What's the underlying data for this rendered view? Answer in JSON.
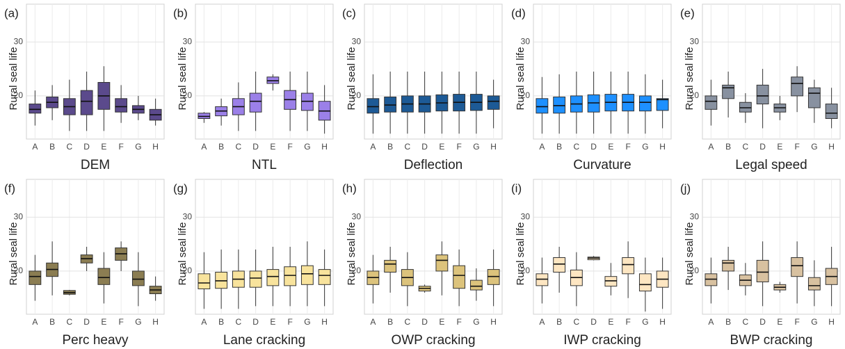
{
  "chart_data": [
    {
      "type": "box",
      "panel": "(a)",
      "title": "DEM",
      "y_label": "Rural seal life",
      "color": "#5b4a8c",
      "categories": [
        "A",
        "B",
        "C",
        "D",
        "E",
        "F",
        "G",
        "H"
      ],
      "whisker_low": [
        14.5,
        15.5,
        13.5,
        13.5,
        13.5,
        15,
        15.5,
        14.5
      ],
      "q1": [
        16.8,
        17.8,
        16.5,
        16.5,
        17.5,
        17,
        16.8,
        15.5
      ],
      "median": [
        17.5,
        18.8,
        18,
        19,
        20,
        18,
        17.5,
        16.5
      ],
      "q3": [
        18.5,
        19.8,
        19.5,
        21,
        22.5,
        19.5,
        18.2,
        17.5
      ],
      "whisker_high": [
        21,
        22,
        23,
        24.5,
        25.5,
        22,
        20,
        19.5
      ],
      "ylim": [
        12,
        37
      ],
      "yticks": [
        20,
        30
      ],
      "grid": true
    },
    {
      "type": "box",
      "panel": "(b)",
      "title": "NTL",
      "y_label": "Rural seal life",
      "color": "#9b80e8",
      "categories": [
        "A",
        "B",
        "C",
        "D",
        "E",
        "F",
        "G",
        "H"
      ],
      "whisker_low": [
        15,
        14.5,
        13.5,
        13.5,
        21,
        13.5,
        13.5,
        13
      ],
      "q1": [
        15.8,
        16.3,
        16.5,
        17,
        22.3,
        17.5,
        17.3,
        15.5
      ],
      "median": [
        16.2,
        17.2,
        18,
        19,
        22.8,
        19.3,
        19,
        17.2
      ],
      "q3": [
        16.8,
        18,
        19.5,
        20.5,
        23.5,
        21,
        20.5,
        19
      ],
      "whisker_high": [
        17,
        19.5,
        22.5,
        24.5,
        24,
        24.5,
        24.5,
        22
      ],
      "ylim": [
        12,
        37
      ],
      "yticks": [
        20,
        30
      ],
      "grid": true
    },
    {
      "type": "box",
      "panel": "(c)",
      "title": "Deflection",
      "y_label": "Rural seal life",
      "color": "#1d5a96",
      "categories": [
        "A",
        "B",
        "C",
        "D",
        "E",
        "F",
        "G",
        "H"
      ],
      "whisker_low": [
        13,
        13,
        13,
        13,
        13,
        13,
        13,
        14
      ],
      "q1": [
        16.8,
        17,
        17,
        17,
        17.2,
        17.2,
        17.3,
        17.5
      ],
      "median": [
        18,
        18.3,
        18.5,
        18.5,
        18.7,
        18.8,
        18.8,
        19
      ],
      "q3": [
        19.5,
        19.8,
        20,
        20,
        20.2,
        20.3,
        20.3,
        20
      ],
      "whisker_high": [
        24,
        24.5,
        24.5,
        24.5,
        24.5,
        24.5,
        24.5,
        23
      ],
      "ylim": [
        12,
        37
      ],
      "yticks": [
        20,
        30
      ],
      "grid": true
    },
    {
      "type": "box",
      "panel": "(d)",
      "title": "Curvature",
      "y_label": "Rural seal life",
      "color": "#1e90ff",
      "categories": [
        "A",
        "B",
        "C",
        "D",
        "E",
        "F",
        "G",
        "H"
      ],
      "whisker_low": [
        13,
        13,
        13,
        13,
        13,
        13,
        13,
        14
      ],
      "q1": [
        16.8,
        16.8,
        17,
        17,
        17.2,
        17.2,
        17.2,
        17.3
      ],
      "median": [
        18,
        18.2,
        18.5,
        18.7,
        18.8,
        18.8,
        18.8,
        19.3
      ],
      "q3": [
        19.5,
        19.8,
        20,
        20.2,
        20.3,
        20.3,
        20,
        19.5
      ],
      "whisker_high": [
        23.5,
        24,
        24.5,
        24.5,
        24.5,
        24.5,
        24,
        23
      ],
      "ylim": [
        12,
        37
      ],
      "yticks": [
        20,
        30
      ],
      "grid": true
    },
    {
      "type": "box",
      "panel": "(e)",
      "title": "Legal speed",
      "y_label": "Rural seal life",
      "color": "#8891a0",
      "categories": [
        "A",
        "B",
        "C",
        "D",
        "E",
        "F",
        "G",
        "H"
      ],
      "whisker_low": [
        14.5,
        16,
        15,
        14,
        15.5,
        17,
        15,
        14
      ],
      "q1": [
        17.5,
        19.5,
        17,
        18.5,
        17,
        20,
        17.8,
        15.8
      ],
      "median": [
        19,
        21.5,
        17.8,
        20,
        17.8,
        22.3,
        20.5,
        16.8
      ],
      "q3": [
        20,
        22,
        18.8,
        22,
        18.5,
        23.5,
        21.5,
        18.5
      ],
      "whisker_high": [
        23,
        24.5,
        20.5,
        25,
        20,
        25.5,
        23,
        21.5
      ],
      "ylim": [
        12,
        37
      ],
      "yticks": [
        20,
        30
      ],
      "grid": true
    },
    {
      "type": "box",
      "panel": "(f)",
      "title": "Perc heavy",
      "y_label": "Rural seal life",
      "color": "#8b7d52",
      "categories": [
        "A",
        "B",
        "C",
        "D",
        "E",
        "F",
        "G",
        "H"
      ],
      "whisker_low": [
        14.5,
        15.5,
        15.5,
        20,
        14,
        20,
        13.5,
        14.5
      ],
      "q1": [
        17.5,
        19,
        15.7,
        21.5,
        17.5,
        22,
        17.3,
        15.8
      ],
      "median": [
        19,
        20.3,
        16,
        22.3,
        18.8,
        23.2,
        18.5,
        16.5
      ],
      "q3": [
        20,
        21.5,
        16.4,
        23,
        20.5,
        24.3,
        20,
        17.2
      ],
      "whisker_high": [
        23,
        25.5,
        16.5,
        24.5,
        23.5,
        25.5,
        23.5,
        19
      ],
      "ylim": [
        12,
        37
      ],
      "yticks": [
        20,
        30
      ],
      "grid": true
    },
    {
      "type": "box",
      "panel": "(g)",
      "title": "Lane cracking",
      "y_label": "Rural seal life",
      "color": "#f8e39c",
      "categories": [
        "A",
        "B",
        "C",
        "D",
        "E",
        "F",
        "G",
        "H"
      ],
      "whisker_low": [
        13,
        13,
        13,
        13.5,
        13.5,
        13.5,
        13.5,
        13.5
      ],
      "q1": [
        16.7,
        16.8,
        17,
        17,
        17.3,
        17.3,
        17.5,
        17.5
      ],
      "median": [
        17.8,
        18.2,
        18.5,
        18.7,
        19,
        19.2,
        19.5,
        19.2
      ],
      "q3": [
        19.5,
        19.8,
        20,
        20,
        20.3,
        20.8,
        21,
        20.3
      ],
      "whisker_high": [
        23.5,
        24,
        24,
        24,
        24.5,
        24.5,
        25.5,
        24
      ],
      "ylim": [
        12,
        37
      ],
      "yticks": [
        20,
        30
      ],
      "grid": true
    },
    {
      "type": "box",
      "panel": "(h)",
      "title": "OWP cracking",
      "y_label": "Rural seal life",
      "color": "#dcc37c",
      "categories": [
        "A",
        "B",
        "C",
        "D",
        "E",
        "F",
        "G",
        "H"
      ],
      "whisker_low": [
        14,
        16,
        13.5,
        16,
        15.5,
        13.5,
        14.5,
        13.5
      ],
      "q1": [
        17.5,
        19.8,
        17.3,
        16.3,
        20,
        16.8,
        16.5,
        17.5
      ],
      "median": [
        18.8,
        21.3,
        18.8,
        16.8,
        22,
        19.2,
        17.2,
        19
      ],
      "q3": [
        20,
        22,
        20.3,
        17.2,
        23,
        21,
        18.3,
        20.3
      ],
      "whisker_high": [
        23,
        24.5,
        23.5,
        17.5,
        25.5,
        24,
        20.5,
        24
      ],
      "ylim": [
        12,
        37
      ],
      "yticks": [
        20,
        30
      ],
      "grid": true
    },
    {
      "type": "box",
      "panel": "(i)",
      "title": "IWP cracking",
      "y_label": "Rural seal life",
      "color": "#fde6c2",
      "categories": [
        "A",
        "B",
        "C",
        "D",
        "E",
        "F",
        "G",
        "H"
      ],
      "whisker_low": [
        14,
        16,
        13.5,
        22,
        15.5,
        15,
        12.5,
        13
      ],
      "q1": [
        17.3,
        19.8,
        17.3,
        22.1,
        17.2,
        19.5,
        16.3,
        17
      ],
      "median": [
        18.5,
        21.3,
        18.8,
        22.4,
        18.2,
        21.2,
        17.5,
        18.5
      ],
      "q3": [
        19.5,
        22.5,
        20.2,
        22.6,
        19,
        22.5,
        19.5,
        20
      ],
      "whisker_high": [
        22.5,
        24.5,
        23.5,
        22.8,
        21.5,
        25.5,
        22.5,
        22.5
      ],
      "ylim": [
        12,
        37
      ],
      "yticks": [
        20,
        30
      ],
      "grid": true
    },
    {
      "type": "box",
      "panel": "(j)",
      "title": "BWP cracking",
      "y_label": "Rural seal life",
      "color": "#d8c1a0",
      "categories": [
        "A",
        "B",
        "C",
        "D",
        "E",
        "F",
        "G",
        "H"
      ],
      "whisker_low": [
        14,
        16.5,
        15.5,
        13.5,
        16,
        14,
        13.5,
        13.5
      ],
      "q1": [
        17.3,
        20,
        17.3,
        18,
        16.5,
        19,
        16.5,
        17.5
      ],
      "median": [
        18.5,
        21.5,
        18.3,
        19.8,
        17,
        21,
        17.3,
        19
      ],
      "q3": [
        19.5,
        22,
        19.3,
        22,
        17.5,
        22.5,
        18.8,
        20.5
      ],
      "whisker_high": [
        22.5,
        24.5,
        21.5,
        25.5,
        18,
        25.5,
        22,
        24.5
      ],
      "ylim": [
        12,
        37
      ],
      "yticks": [
        20,
        30
      ],
      "grid": true
    }
  ]
}
